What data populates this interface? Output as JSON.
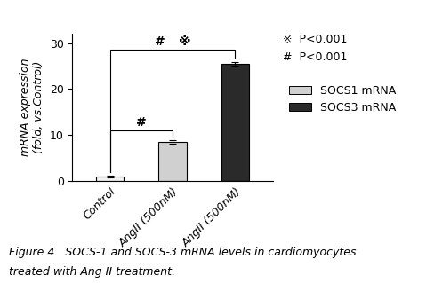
{
  "chart_data": {
    "type": "bar",
    "categories": [
      "Control",
      "AngII (500nM)",
      "AngII (500nM)"
    ],
    "values": [
      1.0,
      8.5,
      25.5
    ],
    "errors": [
      0.12,
      0.35,
      0.45
    ],
    "colors": [
      "#f2f2f2",
      "#d0d0d0",
      "#2a2a2a"
    ],
    "y_label": "mRNA expression\n(fold, vs.Control)",
    "ylim": [
      0,
      32
    ],
    "yticks": [
      0,
      10,
      20,
      30
    ],
    "grid": false,
    "legend": "upper left",
    "legend_entries": [
      {
        "name": "SOCS1 mRNA",
        "color": "#d0d0d0"
      },
      {
        "name": "SOCS3 mRNA",
        "color": "#2a2a2a"
      }
    ],
    "brackets": [
      {
        "from": 0,
        "to": 1,
        "y": 11.0,
        "labels": [
          "#"
        ]
      },
      {
        "from": 0,
        "to": 2,
        "y": 28.5,
        "labels": [
          "#",
          "※"
        ]
      }
    ],
    "notes": [
      "※  P<0.001",
      "#  P<0.001"
    ],
    "caption": [
      "Figure 4.  SOCS-1 and SOCS-3 mRNA levels in cardiomyocytes",
      "treated with Ang II treatment."
    ]
  }
}
